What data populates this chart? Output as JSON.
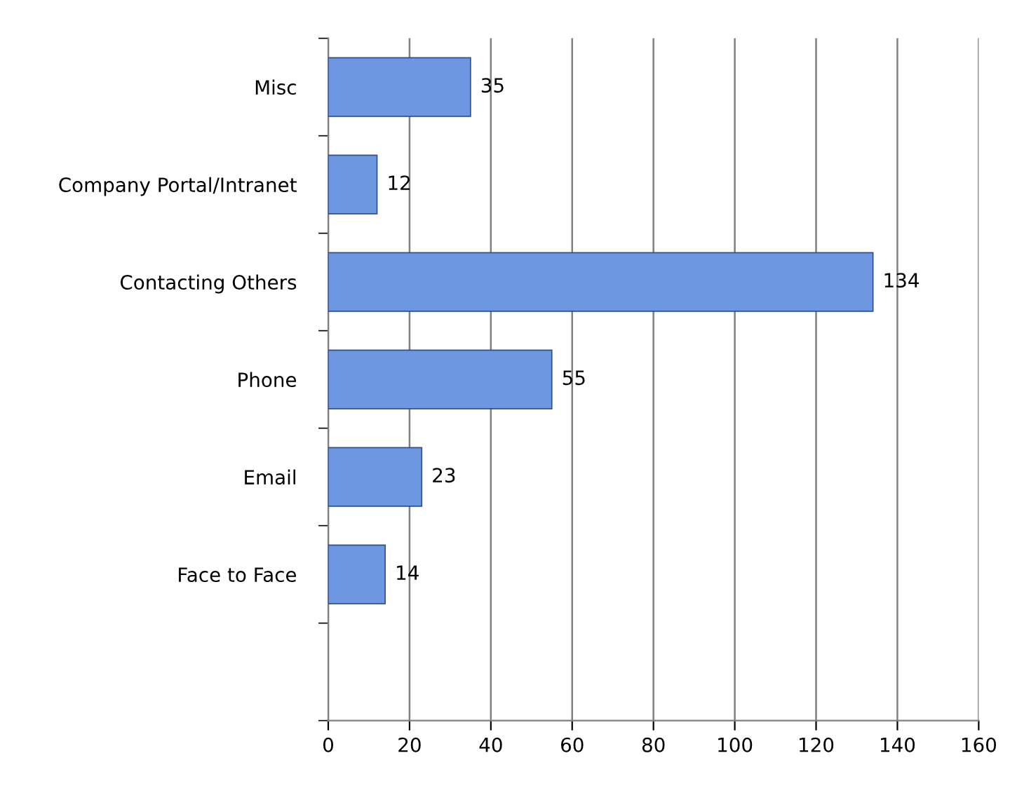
{
  "chart_data": {
    "type": "bar",
    "orientation": "horizontal",
    "categories": [
      "Misc",
      "Company Portal/Intranet",
      "Contacting Others",
      "Phone",
      "Email",
      "Face to Face",
      null
    ],
    "values": [
      35,
      12,
      134,
      55,
      23,
      14,
      null
    ],
    "color": "#6d97e0",
    "xlim": [
      0,
      160
    ],
    "xticks": [
      0,
      20,
      40,
      60,
      80,
      100,
      120,
      140,
      160
    ],
    "grid": "x",
    "data_labels": true
  }
}
